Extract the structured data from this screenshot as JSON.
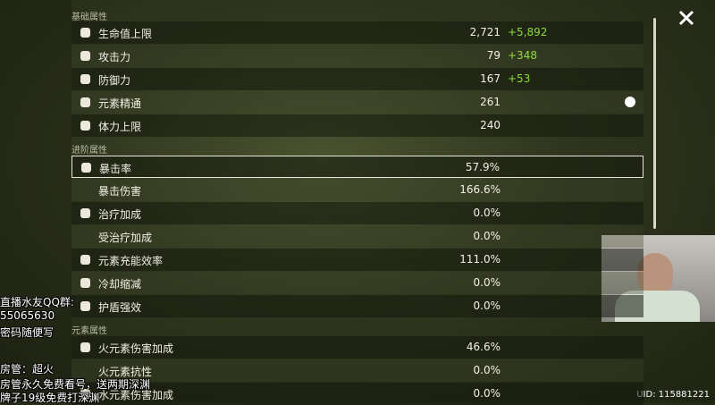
{
  "panel": {
    "sections": [
      {
        "title": "基础属性",
        "rows": [
          {
            "label": "生命值上限",
            "value": "2,721",
            "bonus": "+5,892"
          },
          {
            "label": "攻击力",
            "value": "79",
            "bonus": "+348"
          },
          {
            "label": "防御力",
            "value": "167",
            "bonus": "+53"
          },
          {
            "label": "元素精通",
            "value": "261"
          },
          {
            "label": "体力上限",
            "value": "240"
          }
        ]
      },
      {
        "title": "进阶属性",
        "rows": [
          {
            "label": "暴击率",
            "value": "57.9%"
          },
          {
            "label": "暴击伤害",
            "value": "166.6%"
          },
          {
            "label": "治疗加成",
            "value": "0.0%"
          },
          {
            "label": "受治疗加成",
            "value": "0.0%"
          },
          {
            "label": "元素充能效率",
            "value": "111.0%"
          },
          {
            "label": "冷却缩减",
            "value": "0.0%"
          },
          {
            "label": "护盾强效",
            "value": "0.0%"
          }
        ]
      },
      {
        "title": "元素属性",
        "rows": [
          {
            "label": "火元素伤害加成",
            "value": "46.6%"
          },
          {
            "label": "火元素抗性",
            "value": "0.0%"
          },
          {
            "label": "水元素伤害加成",
            "value": "0.0%"
          }
        ]
      }
    ]
  },
  "overlay": {
    "lines": [
      "直播水友QQ群:",
      "55065630",
      "密码随便写",
      "房管：超火",
      "房管永久免费看号，送两期深渊",
      "牌子19级免费打深渊"
    ]
  },
  "uid": "UID: 115881221"
}
